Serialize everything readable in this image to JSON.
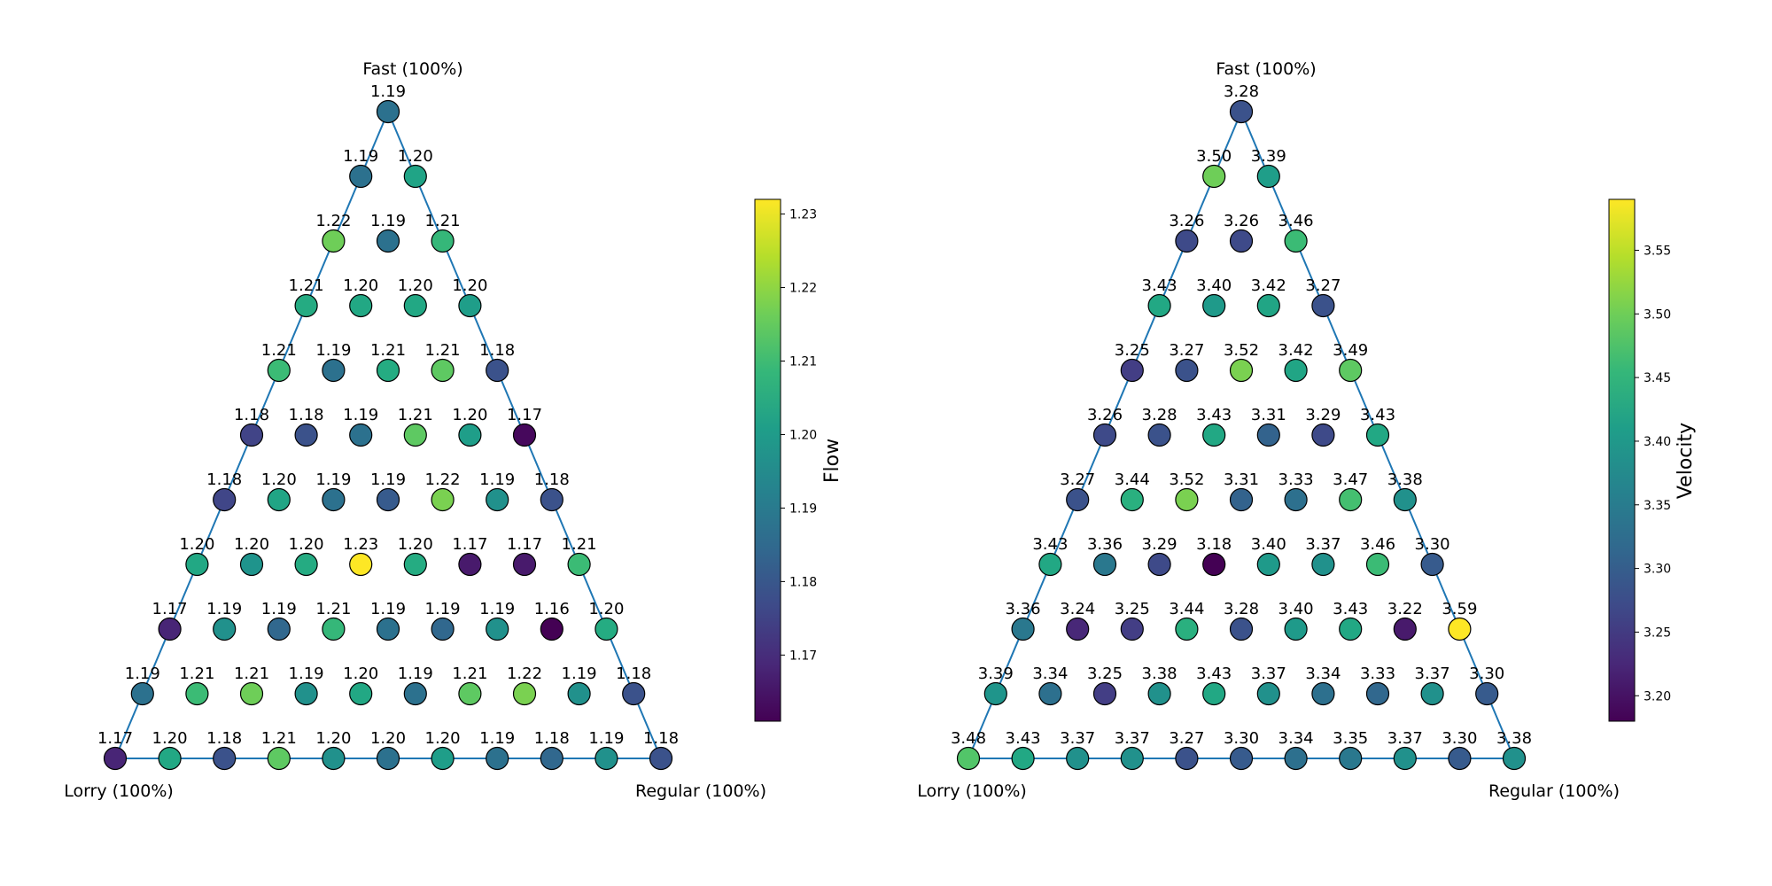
{
  "chart_data": [
    {
      "type": "ternary-scatter",
      "corners": {
        "top": "Fast (100%)",
        "left": "Lorry (100%)",
        "right": "Regular (100%)"
      },
      "colorbar": {
        "label": "Flow",
        "colormap": "viridis",
        "range": [
          1.161,
          1.232
        ],
        "ticks": [
          1.17,
          1.18,
          1.19,
          1.2,
          1.21,
          1.22,
          1.23
        ],
        "tick_labels": [
          "1.17",
          "1.18",
          "1.19",
          "1.20",
          "1.21",
          "1.22",
          "1.23"
        ]
      },
      "rows_top_to_bottom": [
        [
          1.19
        ],
        [
          1.19,
          1.2
        ],
        [
          1.22,
          1.19,
          1.21
        ],
        [
          1.21,
          1.2,
          1.2,
          1.2
        ],
        [
          1.21,
          1.19,
          1.21,
          1.21,
          1.18
        ],
        [
          1.18,
          1.18,
          1.19,
          1.21,
          1.2,
          1.17
        ],
        [
          1.18,
          1.2,
          1.19,
          1.19,
          1.22,
          1.19,
          1.18
        ],
        [
          1.2,
          1.2,
          1.2,
          1.23,
          1.2,
          1.17,
          1.17,
          1.21
        ],
        [
          1.17,
          1.19,
          1.19,
          1.21,
          1.19,
          1.19,
          1.19,
          1.16,
          1.2
        ],
        [
          1.19,
          1.21,
          1.21,
          1.19,
          1.2,
          1.19,
          1.21,
          1.22,
          1.19,
          1.18
        ],
        [
          1.17,
          1.2,
          1.18,
          1.21,
          1.2,
          1.2,
          1.2,
          1.19,
          1.18,
          1.19,
          1.18
        ]
      ],
      "colors_top_to_bottom": [
        [
          "#2c718e"
        ],
        [
          "#2c718e",
          "#20a486"
        ],
        [
          "#6ece58",
          "#2c718e",
          "#35b779"
        ],
        [
          "#25ab82",
          "#22a884",
          "#22a884",
          "#1f9e89"
        ],
        [
          "#3bbb75",
          "#2c718e",
          "#25ac82",
          "#5ec962",
          "#3b528b"
        ],
        [
          "#414487",
          "#3b528b",
          "#2c718e",
          "#5ec962",
          "#1f9e89",
          "#46085c"
        ],
        [
          "#404688",
          "#21a585",
          "#2c718e",
          "#375b8d",
          "#7ad151",
          "#21918c",
          "#3b528b"
        ],
        [
          "#22a884",
          "#1f948c",
          "#25ab82",
          "#fde725",
          "#25ac82",
          "#481a6c",
          "#481a6c",
          "#3bbb75"
        ],
        [
          "#482576",
          "#21918c",
          "#31688e",
          "#35b779",
          "#2c718e",
          "#31688e",
          "#21918c",
          "#440154",
          "#25ac82"
        ],
        [
          "#2c718e",
          "#3bbb75",
          "#6ece58",
          "#21918c",
          "#22a884",
          "#2c718e",
          "#5ec962",
          "#7ad151",
          "#21918c",
          "#3b528b"
        ],
        [
          "#482576",
          "#22a884",
          "#3b528b",
          "#5ec962",
          "#21918c",
          "#2c718e",
          "#1f9e89",
          "#2c718e",
          "#31688e",
          "#21918c",
          "#3b528b"
        ]
      ]
    },
    {
      "type": "ternary-scatter",
      "corners": {
        "top": "Fast (100%)",
        "left": "Lorry (100%)",
        "right": "Regular (100%)"
      },
      "colorbar": {
        "label": "Velocity",
        "colormap": "viridis",
        "range": [
          3.18,
          3.59
        ],
        "ticks": [
          3.2,
          3.25,
          3.3,
          3.35,
          3.4,
          3.45,
          3.5,
          3.55
        ],
        "tick_labels": [
          "3.20",
          "3.25",
          "3.30",
          "3.35",
          "3.40",
          "3.45",
          "3.50",
          "3.55"
        ]
      },
      "rows_top_to_bottom": [
        [
          3.28
        ],
        [
          3.5,
          3.39
        ],
        [
          3.26,
          3.26,
          3.46
        ],
        [
          3.43,
          3.4,
          3.42,
          3.27
        ],
        [
          3.25,
          3.27,
          3.52,
          3.42,
          3.49
        ],
        [
          3.26,
          3.28,
          3.43,
          3.31,
          3.29,
          3.43
        ],
        [
          3.27,
          3.44,
          3.52,
          3.31,
          3.33,
          3.47,
          3.38
        ],
        [
          3.43,
          3.36,
          3.29,
          3.18,
          3.4,
          3.37,
          3.46,
          3.3
        ],
        [
          3.36,
          3.24,
          3.25,
          3.44,
          3.28,
          3.4,
          3.43,
          3.22,
          3.59
        ],
        [
          3.39,
          3.34,
          3.25,
          3.38,
          3.43,
          3.37,
          3.34,
          3.33,
          3.37,
          3.3
        ],
        [
          3.48,
          3.43,
          3.37,
          3.37,
          3.27,
          3.3,
          3.34,
          3.35,
          3.37,
          3.3,
          3.38
        ]
      ],
      "colors_top_to_bottom": [
        [
          "#3b528b"
        ],
        [
          "#6ece58",
          "#1f9e89"
        ],
        [
          "#3e4a89",
          "#3e4a89",
          "#3bbb75"
        ],
        [
          "#22a884",
          "#1f9a8a",
          "#21a585",
          "#3b528b"
        ],
        [
          "#433e85",
          "#3b528b",
          "#7ad151",
          "#21a585",
          "#5ec962"
        ],
        [
          "#3e4a89",
          "#3b528b",
          "#22a884",
          "#33638d",
          "#3e4a89",
          "#22a884"
        ],
        [
          "#3b528b",
          "#2ab07f",
          "#7ad151",
          "#33638d",
          "#2d708e",
          "#44bf70",
          "#21918c"
        ],
        [
          "#22a884",
          "#2a788e",
          "#3e4a89",
          "#440154",
          "#1f9a8a",
          "#21918c",
          "#3bbb75",
          "#375b8d"
        ],
        [
          "#2a788e",
          "#482878",
          "#433e85",
          "#2ab07f",
          "#3b528b",
          "#1f9a8a",
          "#22a884",
          "#481a6c",
          "#fde725"
        ],
        [
          "#1f958b",
          "#2d708e",
          "#433e85",
          "#21918c",
          "#22a884",
          "#21918c",
          "#2d708e",
          "#31688e",
          "#21918c",
          "#375b8d"
        ],
        [
          "#52c569",
          "#22a884",
          "#21918c",
          "#21918c",
          "#3b528b",
          "#375b8d",
          "#2d708e",
          "#2a788e",
          "#21918c",
          "#375b8d",
          "#21918c"
        ]
      ]
    }
  ]
}
